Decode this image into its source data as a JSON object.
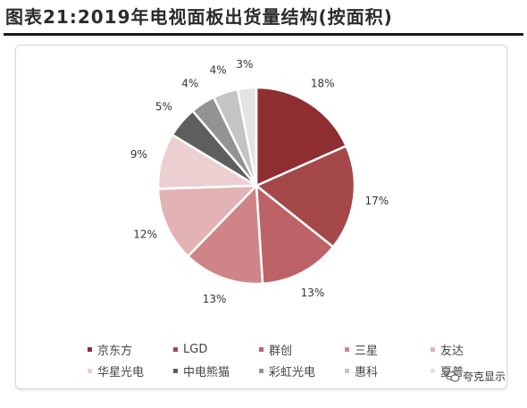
{
  "header": {
    "title": "图表21:2019年电视面板出货量结构(按面积)"
  },
  "chart_data": {
    "type": "pie",
    "title": "",
    "categories": [
      "京东方",
      "LGD",
      "群创",
      "三星",
      "友达",
      "华星光电",
      "中电熊猫",
      "彩虹光电",
      "惠科",
      "夏普"
    ],
    "values": [
      18,
      17,
      13,
      13,
      12,
      9,
      5,
      4,
      4,
      3
    ],
    "value_labels": [
      "18%",
      "17%",
      "13%",
      "13%",
      "12%",
      "9%",
      "5%",
      "4%",
      "4%",
      "3%"
    ],
    "colors": [
      "#8f2e31",
      "#a5484a",
      "#bd6266",
      "#cf8588",
      "#e2b2b4",
      "#ecd0d1",
      "#5e5e5e",
      "#939393",
      "#c4c4c4",
      "#e3e3e3"
    ],
    "legend_position": "bottom"
  },
  "legend": {
    "items": [
      {
        "label": "京东方",
        "color": "#8f2e31"
      },
      {
        "label": "LGD",
        "color": "#a5484a"
      },
      {
        "label": "群创",
        "color": "#bd6266"
      },
      {
        "label": "三星",
        "color": "#cf8588"
      },
      {
        "label": "友达",
        "color": "#e2b2b4"
      },
      {
        "label": "华星光电",
        "color": "#ecd0d1"
      },
      {
        "label": "中电熊猫",
        "color": "#5e5e5e"
      },
      {
        "label": "彩虹光电",
        "color": "#939393"
      },
      {
        "label": "惠科",
        "color": "#c4c4c4"
      },
      {
        "label": "夏普",
        "color": "#e3e3e3"
      }
    ]
  },
  "watermark": {
    "text": "夸克显示",
    "icon": "wechat-icon"
  }
}
